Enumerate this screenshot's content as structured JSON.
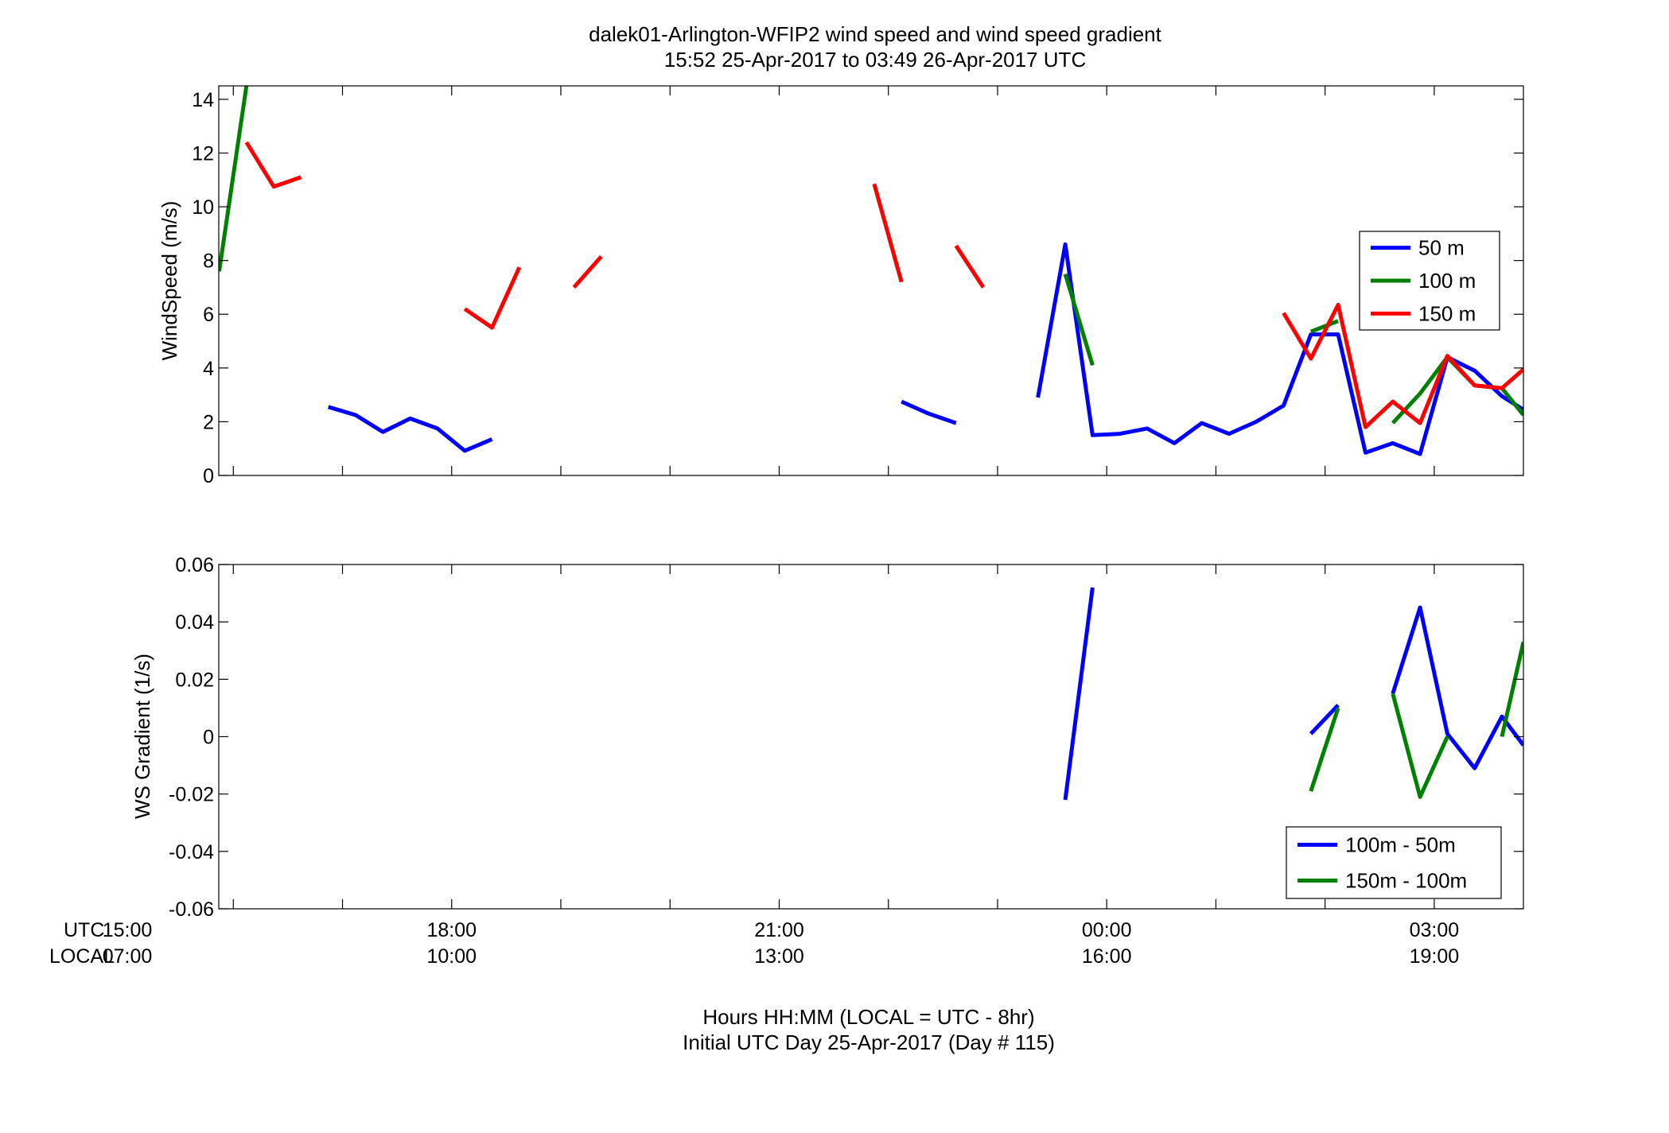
{
  "figure": {
    "title_line1": "dalek01-Arlington-WFIP2  wind speed and wind speed gradient",
    "title_line2": "15:52 25-Apr-2017 to 03:49 26-Apr-2017  UTC",
    "xlabel_line1": "Hours HH:MM  (LOCAL = UTC - 8hr)",
    "xlabel_line2": "Initial UTC Day 25-Apr-2017 (Day # 115)",
    "utc_row_label": "UTC",
    "local_row_label": "LOCAL"
  },
  "chart_data": [
    {
      "type": "line",
      "ylabel": "WindSpeed (m/s)",
      "xlim": [
        15.8667,
        27.8167
      ],
      "ylim": [
        0,
        14.5
      ],
      "yticks": [
        0,
        2,
        4,
        6,
        8,
        10,
        12,
        14
      ],
      "legend_position": "right",
      "colors": {
        "50 m": "#0000ff",
        "100 m": "#008000",
        "150 m": "#ff0000"
      },
      "series": [
        {
          "name": "50 m",
          "color": "#0000ff",
          "segments": [
            [
              [
                16.87,
                2.55
              ],
              [
                17.12,
                2.25
              ],
              [
                17.37,
                1.62
              ],
              [
                17.62,
                2.12
              ],
              [
                17.87,
                1.75
              ],
              [
                18.12,
                0.92
              ],
              [
                18.37,
                1.35
              ]
            ],
            [
              [
                22.12,
                2.75
              ],
              [
                22.37,
                2.3
              ],
              [
                22.62,
                1.95
              ]
            ],
            [
              [
                23.37,
                2.9
              ],
              [
                23.62,
                8.6
              ],
              [
                23.87,
                1.5
              ],
              [
                24.12,
                1.55
              ],
              [
                24.37,
                1.75
              ],
              [
                24.62,
                1.2
              ],
              [
                24.87,
                1.95
              ],
              [
                25.12,
                1.55
              ],
              [
                25.37,
                2.0
              ],
              [
                25.62,
                2.6
              ],
              [
                25.87,
                5.25
              ],
              [
                26.12,
                5.25
              ],
              [
                26.37,
                0.85
              ],
              [
                26.62,
                1.2
              ],
              [
                26.87,
                0.8
              ],
              [
                27.12,
                4.4
              ],
              [
                27.37,
                3.9
              ],
              [
                27.62,
                2.95
              ],
              [
                27.8167,
                2.45
              ]
            ]
          ]
        },
        {
          "name": "100 m",
          "color": "#008000",
          "segments": [
            [
              [
                15.87,
                7.6
              ],
              [
                16.12,
                14.5
              ]
            ],
            [
              [
                23.62,
                7.5
              ],
              [
                23.87,
                4.1
              ]
            ],
            [
              [
                25.87,
                5.35
              ],
              [
                26.12,
                5.75
              ]
            ],
            [
              [
                26.62,
                1.95
              ],
              [
                26.87,
                3.05
              ],
              [
                27.12,
                4.4
              ],
              [
                27.37,
                3.35
              ],
              [
                27.62,
                3.25
              ],
              [
                27.8167,
                2.25
              ]
            ]
          ]
        },
        {
          "name": "150 m",
          "color": "#ff0000",
          "segments": [
            [
              [
                16.12,
                12.4
              ],
              [
                16.37,
                10.75
              ],
              [
                16.62,
                11.1
              ]
            ],
            [
              [
                18.12,
                6.2
              ],
              [
                18.37,
                5.5
              ],
              [
                18.62,
                7.75
              ]
            ],
            [
              [
                19.12,
                7.0
              ],
              [
                19.37,
                8.15
              ]
            ],
            [
              [
                21.87,
                10.85
              ],
              [
                22.12,
                7.2
              ]
            ],
            [
              [
                22.62,
                8.55
              ],
              [
                22.87,
                7.0
              ]
            ],
            [
              [
                25.62,
                6.05
              ],
              [
                25.87,
                4.35
              ],
              [
                26.12,
                6.35
              ],
              [
                26.37,
                1.8
              ],
              [
                26.62,
                2.75
              ],
              [
                26.87,
                1.95
              ],
              [
                27.12,
                4.45
              ],
              [
                27.37,
                3.35
              ],
              [
                27.62,
                3.25
              ],
              [
                27.8167,
                3.95
              ]
            ]
          ]
        }
      ]
    },
    {
      "type": "line",
      "ylabel": "WS Gradient (1/s)",
      "xlim": [
        15.8667,
        27.8167
      ],
      "ylim": [
        -0.06,
        0.06
      ],
      "yticks": [
        -0.06,
        -0.04,
        -0.02,
        0,
        0.02,
        0.04,
        0.06
      ],
      "ytick_labels": [
        "-0.06",
        "-0.04",
        "-0.02",
        "0",
        "0.02",
        "0.04",
        "0.06"
      ],
      "legend_position": "bottom-right",
      "colors": {
        "100m - 50m": "#0000ff",
        "150m - 100m": "#008000"
      },
      "series": [
        {
          "name": "100m - 50m",
          "color": "#0000ff",
          "segments": [
            [
              [
                23.62,
                -0.022
              ],
              [
                23.87,
                0.052
              ]
            ],
            [
              [
                25.87,
                0.001
              ],
              [
                26.12,
                0.011
              ]
            ],
            [
              [
                26.62,
                0.015
              ],
              [
                26.87,
                0.045
              ],
              [
                27.12,
                0.001
              ],
              [
                27.37,
                -0.011
              ],
              [
                27.62,
                0.007
              ],
              [
                27.8167,
                -0.003
              ]
            ]
          ]
        },
        {
          "name": "150m - 100m",
          "color": "#008000",
          "segments": [
            [
              [
                25.87,
                -0.019
              ],
              [
                26.12,
                0.01
              ]
            ],
            [
              [
                26.62,
                0.015
              ],
              [
                26.87,
                -0.021
              ],
              [
                27.12,
                0.0
              ],
              [
                27.37,
                null
              ],
              [
                27.62,
                0.0
              ],
              [
                27.8167,
                0.033
              ]
            ]
          ]
        }
      ]
    }
  ],
  "xticks": {
    "values": [
      15,
      18,
      21,
      24,
      27
    ],
    "utc_labels": [
      "15:00",
      "18:00",
      "21:00",
      "00:00",
      "03:00"
    ],
    "local_labels": [
      "07:00",
      "10:00",
      "13:00",
      "16:00",
      "19:00"
    ]
  }
}
